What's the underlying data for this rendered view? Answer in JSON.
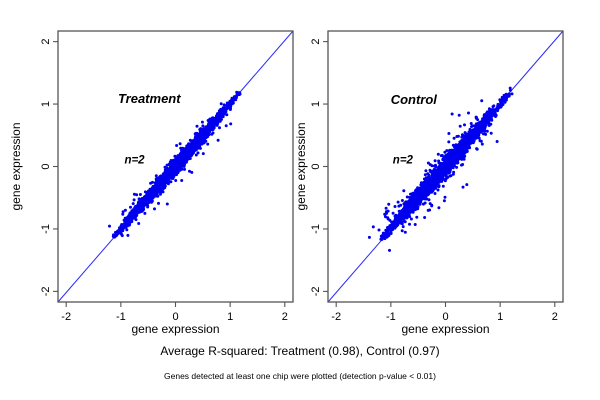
{
  "captions": {
    "r_squared": "Average R-squared: Treatment (0.98), Control (0.97)",
    "detection_note": "Genes detected at least one chip were plotted (detection p-value < 0.01)"
  },
  "colors": {
    "points": "#0000ee",
    "identity_line": "#2a2aff",
    "panel_label": "#7f7f7f",
    "annotation": "#000000",
    "frame": "#555555"
  },
  "chart_data": [
    {
      "type": "scatter",
      "panel_label": "Treatment",
      "panel_label_pos": {
        "x": -0.48,
        "y": 1.02
      },
      "annotation": "n=2",
      "annotation_pos": {
        "x": -0.75,
        "y": 0.05
      },
      "xlabel": "gene expression",
      "ylabel": "gene expression",
      "xlim": [
        -2.15,
        2.15
      ],
      "ylim": [
        -2.17,
        2.17
      ],
      "xticks": [
        "-2",
        "-1",
        "0",
        "1",
        "2"
      ],
      "yticks": [
        "-2",
        "-1",
        "0",
        "1",
        "2"
      ],
      "xtick_values": [
        -2,
        -1,
        0,
        1,
        2
      ],
      "ytick_values": [
        -2,
        -1,
        0,
        1,
        2
      ],
      "identity_line": true,
      "r_squared": 0.98,
      "points_summary": {
        "description": "dense cloud of gene expression replicate pairs along y=x",
        "n_core": 2600,
        "range": [
          -1.12,
          1.19
        ],
        "center": -0.05,
        "spread": 0.55,
        "noise_sd": 0.055,
        "halo_n": 130,
        "halo_sd": 0.15,
        "seed": 11
      },
      "outliers": [
        [
          0.78,
          0.42
        ],
        [
          -0.15,
          -0.6
        ]
      ]
    },
    {
      "type": "scatter",
      "panel_label": "Control",
      "panel_label_pos": {
        "x": -0.58,
        "y": 1.0
      },
      "annotation": "n=2",
      "annotation_pos": {
        "x": -0.78,
        "y": 0.05
      },
      "xlabel": "gene expression",
      "ylabel": "gene expression",
      "xlim": [
        -2.15,
        2.15
      ],
      "ylim": [
        -2.17,
        2.17
      ],
      "xticks": [
        "-2",
        "-1",
        "0",
        "1",
        "2"
      ],
      "yticks": [
        "-2",
        "-1",
        "0",
        "1",
        "2"
      ],
      "xtick_values": [
        -2,
        -1,
        0,
        1,
        2
      ],
      "ytick_values": [
        -2,
        -1,
        0,
        1,
        2
      ],
      "identity_line": true,
      "r_squared": 0.97,
      "points_summary": {
        "description": "dense cloud of gene expression replicate pairs along y=x, slightly wider",
        "n_core": 2600,
        "range": [
          -1.15,
          1.19
        ],
        "center": -0.05,
        "spread": 0.55,
        "noise_sd": 0.07,
        "halo_n": 190,
        "halo_sd": 0.18,
        "seed": 29
      },
      "outliers": [
        [
          -0.25,
          -0.62
        ],
        [
          -0.02,
          -0.55
        ],
        [
          0.25,
          0.82
        ],
        [
          0.32,
          -0.33
        ],
        [
          0.12,
          0.84
        ],
        [
          -0.12,
          -0.66
        ],
        [
          0.39,
          -0.29
        ]
      ]
    }
  ]
}
